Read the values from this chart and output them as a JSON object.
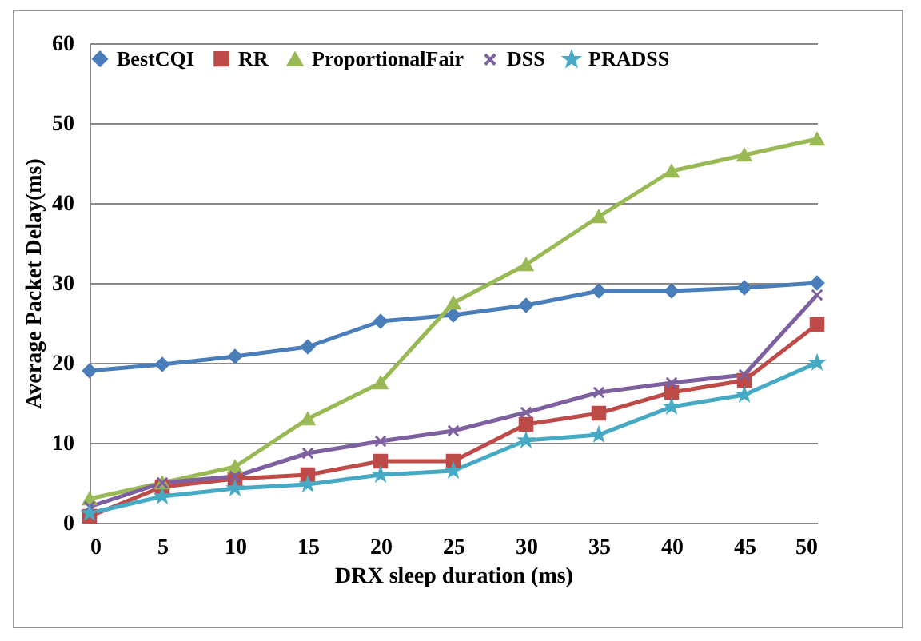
{
  "chart_data": {
    "type": "line",
    "xlabel": "DRX sleep duration (ms)",
    "ylabel": "Average Packet Delay(ms)",
    "categories": [
      "0",
      "5",
      "10",
      "15",
      "20",
      "25",
      "30",
      "35",
      "40",
      "45",
      "50"
    ],
    "ylim": [
      0,
      60
    ],
    "yticks": [
      0,
      10,
      20,
      30,
      40,
      50,
      60
    ],
    "grid": "y",
    "legend": "top",
    "series": [
      {
        "name": "BestCQI",
        "color": "#4a7ebb",
        "marker": "diamond",
        "values": [
          19,
          19.8,
          20.8,
          22,
          25.2,
          26,
          27.2,
          29,
          29,
          29.4,
          30
        ]
      },
      {
        "name": "RR",
        "color": "#be4b48",
        "marker": "square",
        "values": [
          0.8,
          4.5,
          5.5,
          6,
          7.7,
          7.7,
          12.3,
          13.7,
          16.3,
          17.8,
          24.8
        ]
      },
      {
        "name": "ProportionalFair",
        "color": "#98b954",
        "marker": "triangle",
        "values": [
          3,
          5,
          7,
          13,
          17.5,
          27.5,
          32.3,
          38.3,
          44,
          46,
          48
        ]
      },
      {
        "name": "DSS",
        "color": "#7d60a0",
        "marker": "cross",
        "values": [
          2,
          5,
          5.8,
          8.7,
          10.2,
          11.5,
          13.8,
          16.3,
          17.5,
          18.5,
          28.5
        ]
      },
      {
        "name": "PRADSS",
        "color": "#46aac5",
        "marker": "star",
        "values": [
          1.2,
          3.3,
          4.3,
          4.8,
          6,
          6.5,
          10.3,
          11,
          14.5,
          16,
          20
        ]
      }
    ]
  }
}
